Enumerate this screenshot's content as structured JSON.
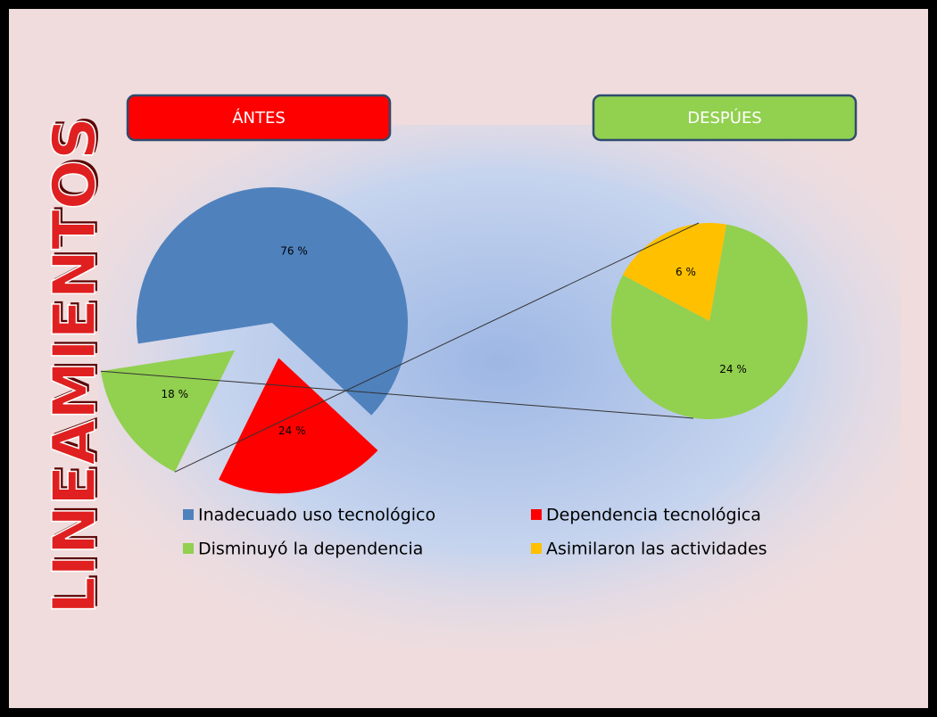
{
  "title": "LINEAMIENTOS",
  "chart_data": {
    "type": "pie_of_pie",
    "panels": [
      "ÁNTES",
      "DESPÚES"
    ],
    "panel_colors": [
      "#ff0000",
      "#92d050"
    ],
    "series": [
      {
        "name": "Inadecuado uso tecnológico",
        "color": "#4f81bd"
      },
      {
        "name": "Dependencia tecnológica",
        "color": "#ff0000"
      },
      {
        "name": "Disminuyó la dependencia",
        "color": "#92d050"
      },
      {
        "name": "Asimilaron las actividades",
        "color": "#ffc000"
      }
    ],
    "pies": [
      {
        "values": [
          76,
          24,
          18
        ],
        "value_labels": [
          "76 %",
          "24 %",
          "18 %"
        ],
        "colors": [
          "#4f81bd",
          "#ff0000",
          "#92d050"
        ]
      },
      {
        "values": [
          24,
          6
        ],
        "value_labels": [
          "24 %",
          "6 %"
        ],
        "colors": [
          "#92d050",
          "#ffc000"
        ]
      }
    ]
  }
}
